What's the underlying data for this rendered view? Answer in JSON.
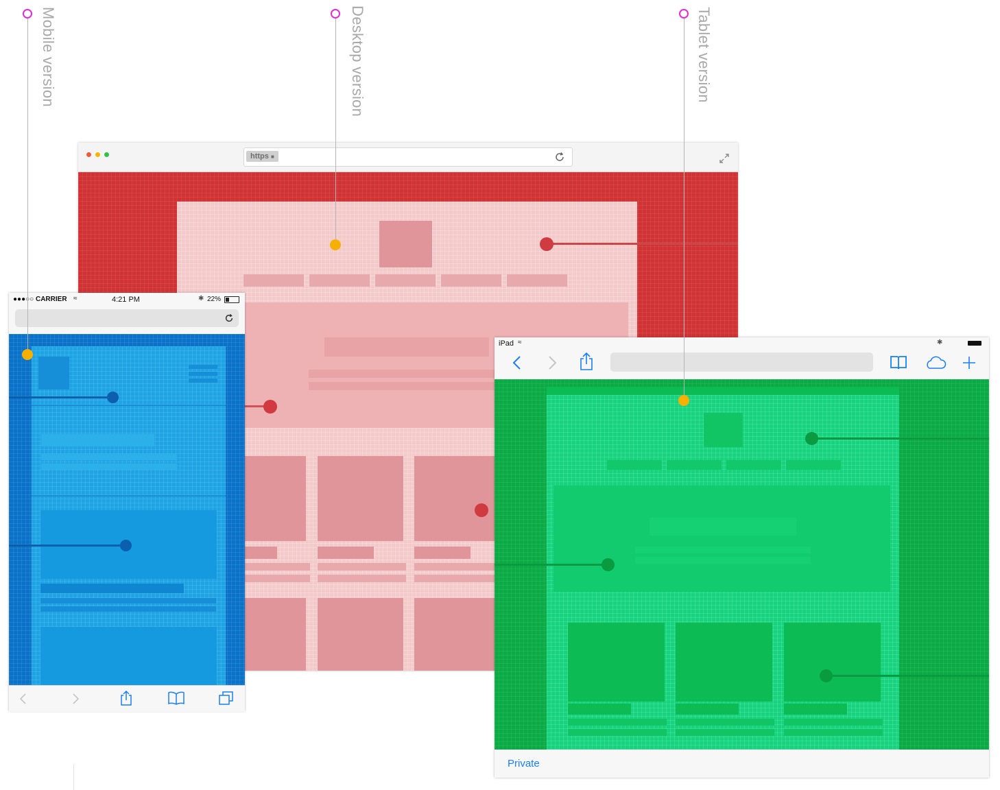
{
  "labels": {
    "mobile": "Mobile version",
    "desktop": "Desktop version",
    "tablet": "Tablet version"
  },
  "colors": {
    "desktop_outer": "#d13335",
    "desktop_inner": "#f4c9ca",
    "desktop_block": "#e0959a",
    "mobile_outer": "#0a73c9",
    "mobile_inner": "#1ea4e4",
    "mobile_block": "#0f86d2",
    "tablet_outer": "#0aab45",
    "tablet_inner": "#16d37e",
    "tablet_block": "#0dbb55",
    "marker_pink": "#e02bd6",
    "marker_yellow": "#f7b000",
    "ios_blue": "#1a7ef7"
  },
  "desktop_browser": {
    "url_scheme": "https"
  },
  "mobile_status": {
    "carrier": "●●●○○ CARRIER",
    "time": "4:21 PM",
    "battery": "22%"
  },
  "tablet_status": {
    "device": "iPad"
  },
  "tablet_bottom": {
    "private_label": "Private"
  }
}
